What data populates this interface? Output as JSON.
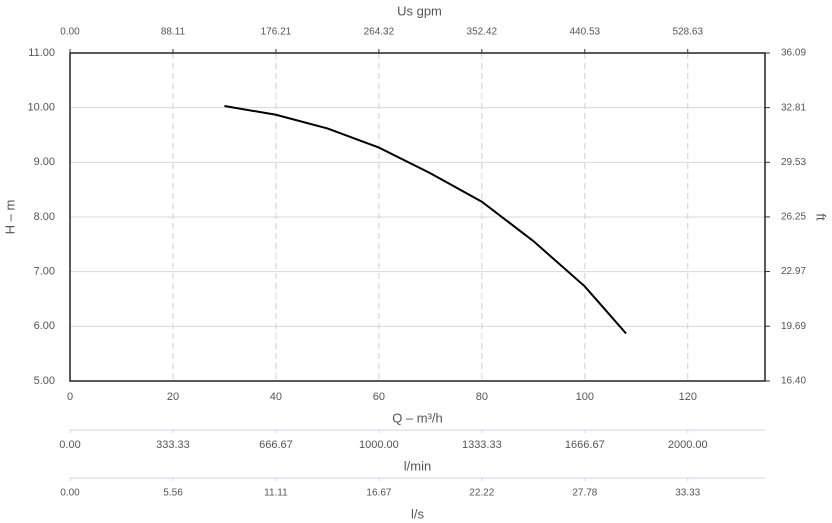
{
  "chart_data": {
    "type": "line",
    "xlabel": "Q – m³/h",
    "ylabel": "H – m",
    "y2label": "ft",
    "xlim": [
      0,
      135
    ],
    "xticks": [
      0,
      20,
      40,
      60,
      80,
      100,
      120
    ],
    "ylim": [
      5,
      11
    ],
    "yticks": [
      {
        "value": 5,
        "label": "5.00"
      },
      {
        "value": 6,
        "label": "6.00"
      },
      {
        "value": 7,
        "label": "7.00"
      },
      {
        "value": 8,
        "label": "8.00"
      },
      {
        "value": 9,
        "label": "9.00"
      },
      {
        "value": 10,
        "label": "10.00"
      },
      {
        "value": 11,
        "label": "11.00"
      }
    ],
    "y2lim": [
      16.4,
      36.09
    ],
    "y2ticks": [
      {
        "value": 16.4,
        "label": "16.40"
      },
      19.69,
      22.97,
      26.25,
      29.53,
      32.81,
      36.09
    ],
    "grid": true,
    "x": [
      30,
      40,
      50,
      60,
      70,
      80,
      90,
      100,
      108
    ],
    "series": [
      {
        "color": "#000000",
        "values": [
          10.03,
          9.87,
          9.62,
          9.27,
          8.8,
          8.28,
          7.56,
          6.73,
          5.87
        ]
      }
    ],
    "top_axis": {
      "label": "Us gpm",
      "lim": [
        0,
        594.74
      ],
      "ticks": [
        {
          "value": 0,
          "label": "0.00"
        },
        88.11,
        176.21,
        264.32,
        352.42,
        440.53,
        528.63
      ]
    },
    "extra_axes": [
      {
        "label": "l/min",
        "lim": [
          0,
          2250
        ],
        "ticks": [
          {
            "value": 0,
            "label": "0.00"
          },
          333.33,
          666.67,
          {
            "value": 1000,
            "label": "1000.00"
          },
          1333.33,
          1666.67,
          {
            "value": 2000,
            "label": "2000.00"
          }
        ]
      },
      {
        "label": "l/s",
        "lim": [
          0,
          37.5
        ],
        "ticks": [
          {
            "value": 0,
            "label": "0.00"
          },
          5.56,
          11.11,
          16.67,
          22.22,
          27.78,
          33.33
        ]
      }
    ]
  }
}
